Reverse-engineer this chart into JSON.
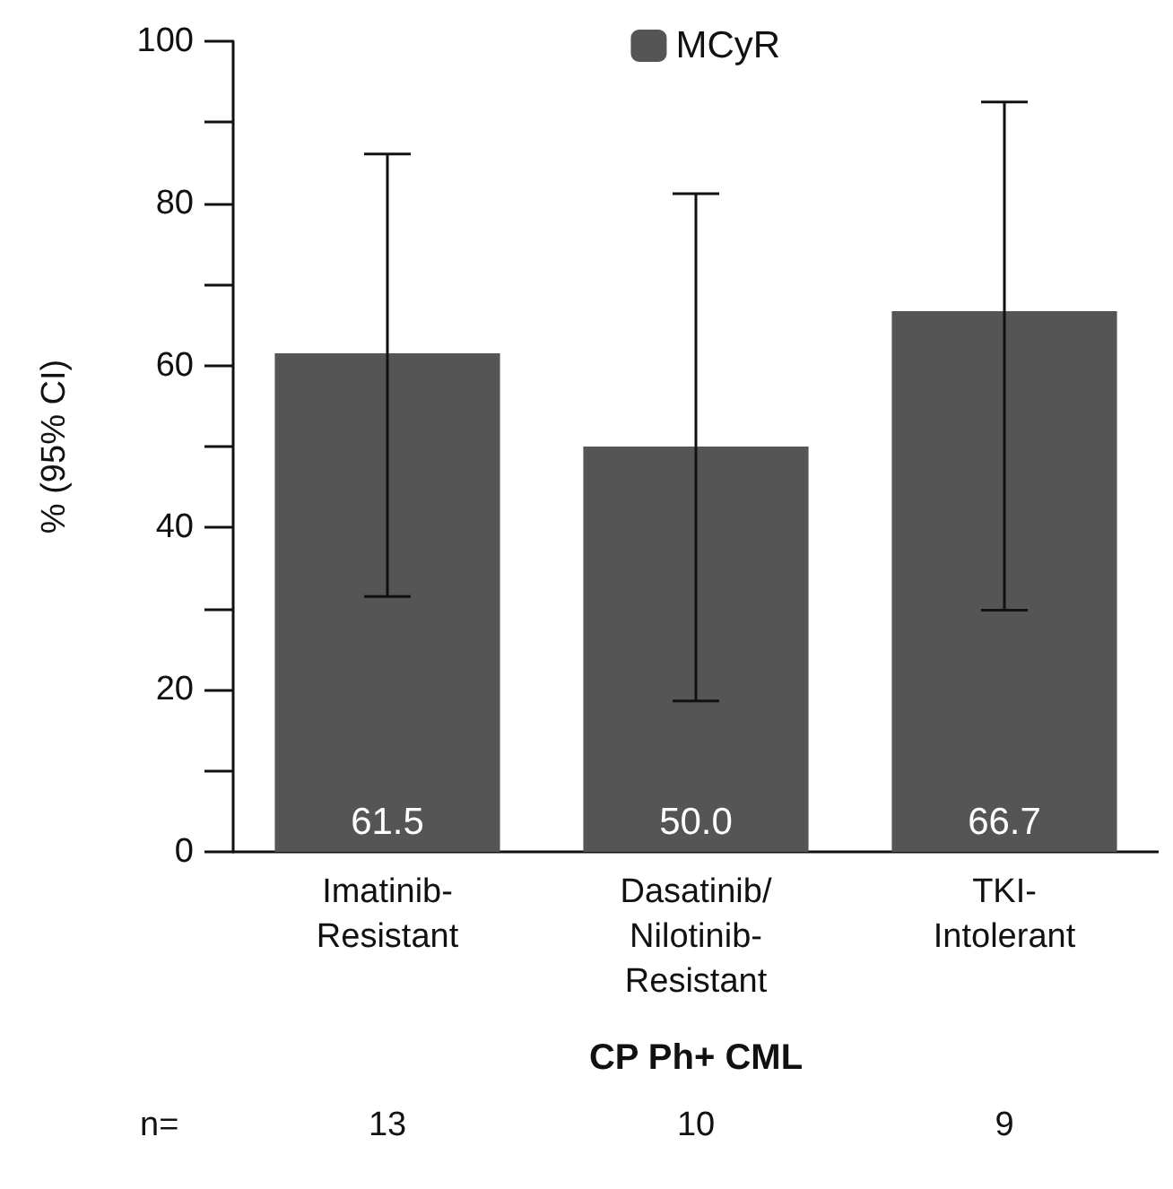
{
  "chart_data": {
    "type": "bar",
    "categories": [
      "Imatinib-\nResistant",
      "Dasatinib/\nNilotinib-\nResistant",
      "TKI-\nIntolerant"
    ],
    "series": [
      {
        "name": "MCyR",
        "color": "#555555",
        "values": [
          61.5,
          50.0,
          66.7
        ],
        "value_labels": [
          "61.5",
          "50.0",
          "66.7"
        ],
        "errors": [
          [
            31.5,
            86.1
          ],
          [
            18.6,
            81.2
          ],
          [
            29.8,
            92.5
          ]
        ]
      }
    ],
    "xlabel": "CP Ph+ CML",
    "ylabel": "% (95% CI)",
    "ylim": [
      0,
      100
    ],
    "yticks": [
      0,
      {
        "value": 10,
        "label": null
      },
      20,
      {
        "value": 30,
        "label": null
      },
      40,
      {
        "value": 50,
        "label": null
      },
      60,
      {
        "value": 70,
        "label": null
      },
      80,
      {
        "value": 90,
        "label": null
      },
      100
    ],
    "grid": false,
    "legend": "top",
    "annotations": [
      "n=",
      "13",
      "10",
      "9"
    ]
  }
}
